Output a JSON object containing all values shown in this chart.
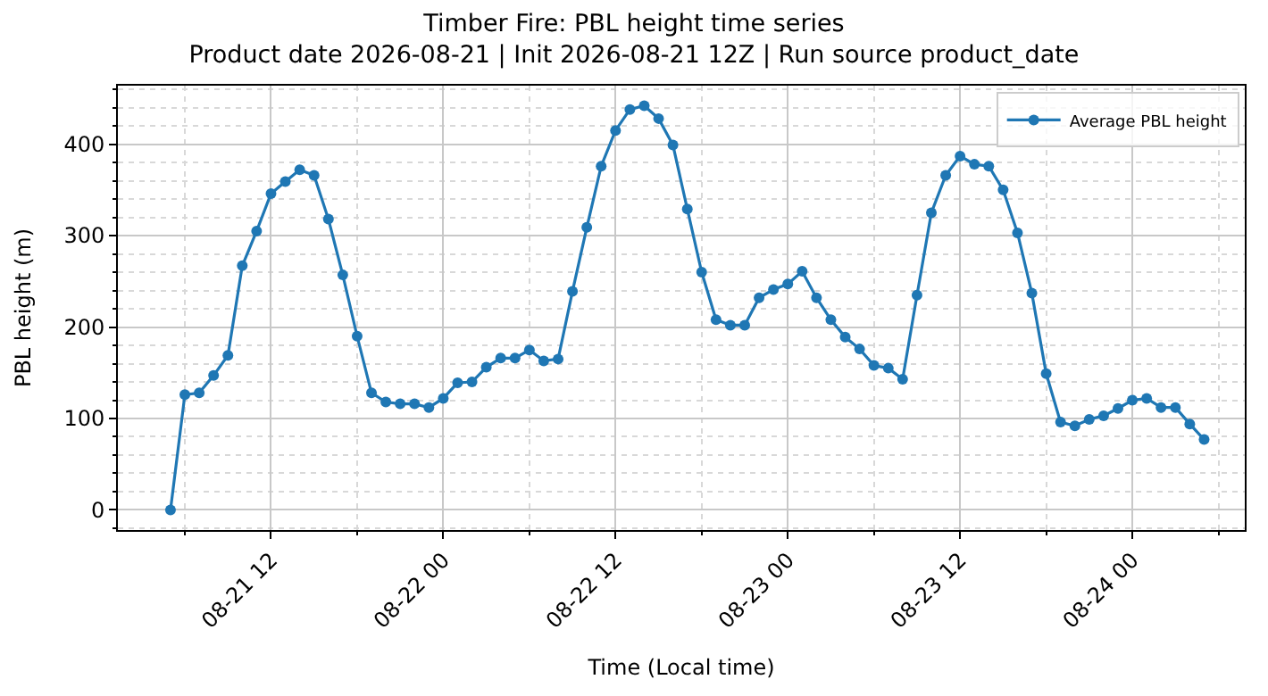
{
  "chart_data": {
    "type": "line",
    "title": "Timber Fire: PBL height time series",
    "subtitle": "Product date 2026-08-21 | Init 2026-08-21 12Z | Run source product_date",
    "xlabel": "Time (Local time)",
    "ylabel": "PBL height (m)",
    "x": [
      "2026-08-21T05:00",
      "2026-08-21T06:00",
      "2026-08-21T07:00",
      "2026-08-21T08:00",
      "2026-08-21T09:00",
      "2026-08-21T10:00",
      "2026-08-21T11:00",
      "2026-08-21T12:00",
      "2026-08-21T13:00",
      "2026-08-21T14:00",
      "2026-08-21T15:00",
      "2026-08-21T16:00",
      "2026-08-21T17:00",
      "2026-08-21T18:00",
      "2026-08-21T19:00",
      "2026-08-21T20:00",
      "2026-08-21T21:00",
      "2026-08-21T22:00",
      "2026-08-21T23:00",
      "2026-08-22T00:00",
      "2026-08-22T01:00",
      "2026-08-22T02:00",
      "2026-08-22T03:00",
      "2026-08-22T04:00",
      "2026-08-22T05:00",
      "2026-08-22T06:00",
      "2026-08-22T07:00",
      "2026-08-22T08:00",
      "2026-08-22T09:00",
      "2026-08-22T10:00",
      "2026-08-22T11:00",
      "2026-08-22T12:00",
      "2026-08-22T13:00",
      "2026-08-22T14:00",
      "2026-08-22T15:00",
      "2026-08-22T16:00",
      "2026-08-22T17:00",
      "2026-08-22T18:00",
      "2026-08-22T19:00",
      "2026-08-22T20:00",
      "2026-08-22T21:00",
      "2026-08-22T22:00",
      "2026-08-22T23:00",
      "2026-08-23T00:00",
      "2026-08-23T01:00",
      "2026-08-23T02:00",
      "2026-08-23T03:00",
      "2026-08-23T04:00",
      "2026-08-23T05:00",
      "2026-08-23T06:00",
      "2026-08-23T07:00",
      "2026-08-23T08:00",
      "2026-08-23T09:00",
      "2026-08-23T10:00",
      "2026-08-23T11:00",
      "2026-08-23T12:00",
      "2026-08-23T13:00",
      "2026-08-23T14:00",
      "2026-08-23T15:00",
      "2026-08-23T16:00",
      "2026-08-23T17:00",
      "2026-08-23T18:00",
      "2026-08-23T19:00",
      "2026-08-23T20:00",
      "2026-08-23T21:00",
      "2026-08-23T22:00",
      "2026-08-23T23:00",
      "2026-08-24T00:00",
      "2026-08-24T01:00",
      "2026-08-24T02:00",
      "2026-08-24T03:00",
      "2026-08-24T04:00",
      "2026-08-24T05:00"
    ],
    "series": [
      {
        "name": "Average PBL height",
        "color": "#1f77b4",
        "values": [
          0,
          126,
          128,
          147,
          169,
          267,
          305,
          346,
          359,
          372,
          366,
          318,
          257,
          190,
          128,
          118,
          116,
          116,
          112,
          122,
          139,
          140,
          156,
          166,
          166,
          175,
          163,
          165,
          239,
          309,
          376,
          415,
          438,
          442,
          428,
          399,
          329,
          260,
          208,
          202,
          202,
          232,
          241,
          247,
          261,
          232,
          208,
          189,
          176,
          158,
          155,
          143,
          235,
          325,
          366,
          387,
          378,
          376,
          350,
          303,
          237,
          149,
          96,
          92,
          99,
          103,
          111,
          120,
          122,
          112,
          112,
          94,
          77
        ]
      }
    ],
    "xlim": [
      "2026-08-21T01:20",
      "2026-08-24T07:50"
    ],
    "xticks": [
      {
        "value": "2026-08-21T06:00",
        "label": null
      },
      {
        "value": "2026-08-21T12:00",
        "label": "08-21 12"
      },
      {
        "value": "2026-08-21T18:00",
        "label": null
      },
      {
        "value": "2026-08-22T00:00",
        "label": "08-22 00"
      },
      {
        "value": "2026-08-22T06:00",
        "label": null
      },
      {
        "value": "2026-08-22T12:00",
        "label": "08-22 12"
      },
      {
        "value": "2026-08-22T18:00",
        "label": null
      },
      {
        "value": "2026-08-23T00:00",
        "label": "08-23 00"
      },
      {
        "value": "2026-08-23T06:00",
        "label": null
      },
      {
        "value": "2026-08-23T12:00",
        "label": "08-23 12"
      },
      {
        "value": "2026-08-23T18:00",
        "label": null
      },
      {
        "value": "2026-08-24T00:00",
        "label": "08-24 00"
      },
      {
        "value": "2026-08-24T06:00",
        "label": null
      }
    ],
    "ylim": [
      -22,
      464
    ],
    "yticks": [
      {
        "value": -20,
        "label": null
      },
      0,
      {
        "value": 20,
        "label": null
      },
      {
        "value": 40,
        "label": null
      },
      {
        "value": 60,
        "label": null
      },
      {
        "value": 80,
        "label": null
      },
      100,
      {
        "value": 120,
        "label": null
      },
      {
        "value": 140,
        "label": null
      },
      {
        "value": 160,
        "label": null
      },
      {
        "value": 180,
        "label": null
      },
      200,
      {
        "value": 220,
        "label": null
      },
      {
        "value": 240,
        "label": null
      },
      {
        "value": 260,
        "label": null
      },
      {
        "value": 280,
        "label": null
      },
      300,
      {
        "value": 320,
        "label": null
      },
      {
        "value": 340,
        "label": null
      },
      {
        "value": 360,
        "label": null
      },
      {
        "value": 380,
        "label": null
      },
      400,
      {
        "value": 420,
        "label": null
      },
      {
        "value": 440,
        "label": null
      },
      {
        "value": 460,
        "label": null
      }
    ],
    "grid": true,
    "legend": "top right",
    "marker": "circle",
    "line_style": "solid"
  }
}
